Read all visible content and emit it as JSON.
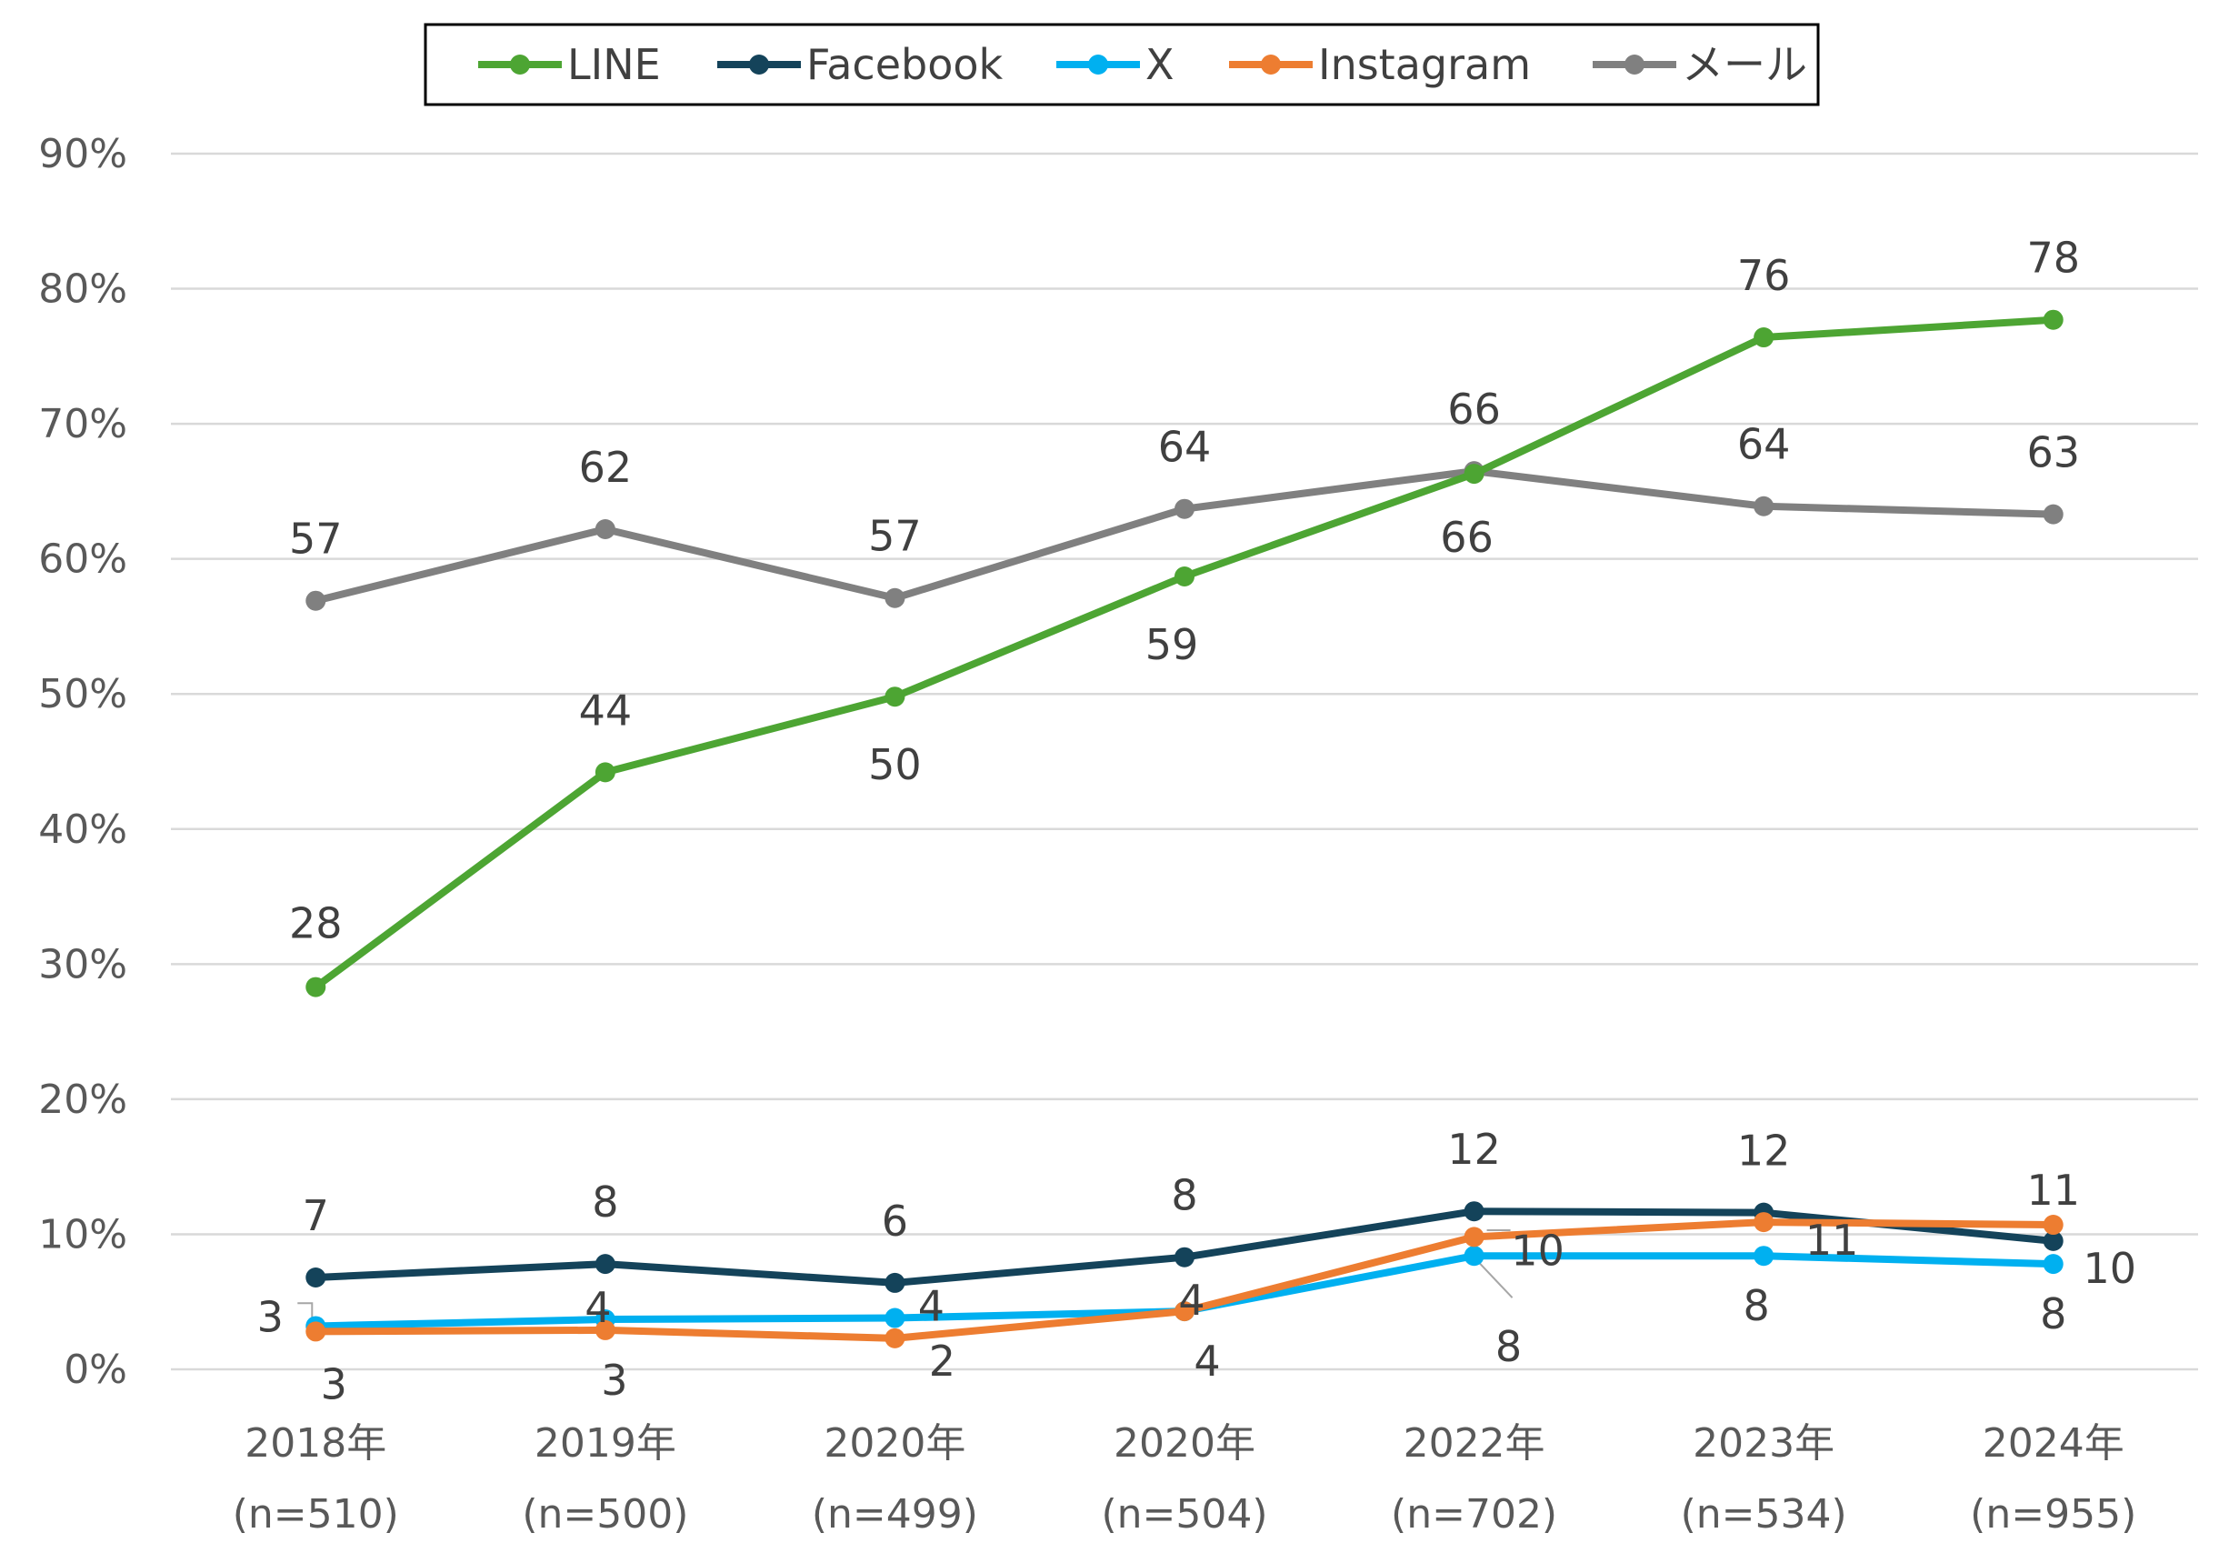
{
  "chart_data": {
    "type": "line",
    "title": "",
    "xlabel": "",
    "ylabel": "",
    "ylim": [
      0,
      90
    ],
    "yticks": [
      "0%",
      "10%",
      "20%",
      "30%",
      "40%",
      "50%",
      "60%",
      "70%",
      "80%",
      "90%"
    ],
    "grid": true,
    "legend_position": "top",
    "categories": [
      {
        "year": "2018年",
        "n": "(n=510)"
      },
      {
        "year": "2019年",
        "n": "(n=500)"
      },
      {
        "year": "2020年",
        "n": "(n=499)"
      },
      {
        "year": "2020年",
        "n": "(n=504)"
      },
      {
        "year": "2022年",
        "n": "(n=702)"
      },
      {
        "year": "2023年",
        "n": "(n=534)"
      },
      {
        "year": "2024年",
        "n": "(n=955)"
      }
    ],
    "series": [
      {
        "name": "LINE",
        "color": "#4da533",
        "values": [
          28.3,
          44.2,
          49.8,
          58.7,
          66.3,
          76.4,
          77.7
        ],
        "labels": [
          "28",
          "44",
          "50",
          "59",
          "66",
          "76",
          "78"
        ]
      },
      {
        "name": "Facebook",
        "color": "#14435a",
        "values": [
          6.8,
          7.8,
          6.4,
          8.3,
          11.7,
          11.6,
          9.5
        ],
        "labels": [
          "7",
          "8",
          "6",
          "8",
          "12",
          "12",
          "10"
        ]
      },
      {
        "name": "X",
        "color": "#00b0f0",
        "values": [
          3.2,
          3.7,
          3.8,
          4.3,
          8.4,
          8.4,
          7.8
        ],
        "labels": [
          "3",
          "4",
          "4",
          "4",
          "8",
          "8",
          "8"
        ]
      },
      {
        "name": "Instagram",
        "color": "#ed7d31",
        "values": [
          2.8,
          2.9,
          2.3,
          4.3,
          9.8,
          10.9,
          10.7
        ],
        "labels": [
          "3",
          "3",
          "2",
          "4",
          "10",
          "11",
          "11"
        ]
      },
      {
        "name": "メール",
        "color": "#808080",
        "values": [
          56.9,
          62.2,
          57.1,
          63.7,
          66.5,
          63.9,
          63.3
        ],
        "labels": [
          "57",
          "62",
          "57",
          "64",
          "66",
          "64",
          "63"
        ]
      }
    ]
  }
}
